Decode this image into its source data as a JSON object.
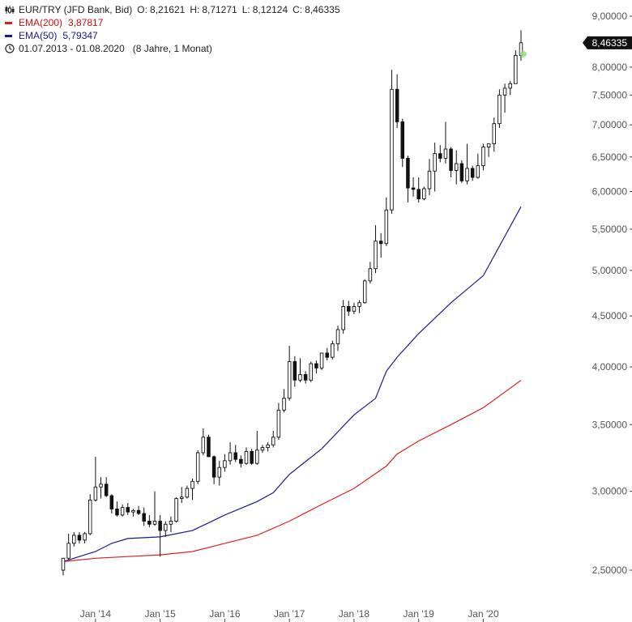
{
  "legend": {
    "instrument": "EUR/TRY (JFD Bank, Bid)",
    "open_label": "O:",
    "open": "8,21621",
    "high_label": "H:",
    "high": "8,71271",
    "low_label": "L:",
    "low": "8,12124",
    "close_label": "C:",
    "close": "8,46335",
    "ema200_label": "EMA(200)",
    "ema200_value": "3,87817",
    "ema50_label": "EMA(50)",
    "ema50_value": "5,79347",
    "range": "01.07.2013 - 01.08.2020",
    "range_note": "(8 Jahre, 1 Monat)",
    "icons": [
      "candlestick-icon",
      "clock-icon"
    ]
  },
  "colors": {
    "ema200": "#dd2222",
    "ema50": "#1a1a8c",
    "candle": "#111111",
    "last_price_bg": "#111111",
    "last_marker": "#8ee07a"
  },
  "chart_data": {
    "type": "candlestick",
    "title": "EUR/TRY (JFD Bank, Bid)",
    "y_scale": "log",
    "ylim": [
      2.4,
      9.15
    ],
    "y_ticks": [
      {
        "v": 2.5,
        "label": "2,50000"
      },
      {
        "v": 3.0,
        "label": "3,00000"
      },
      {
        "v": 3.5,
        "label": "3,50000"
      },
      {
        "v": 4.0,
        "label": "4,00000"
      },
      {
        "v": 4.5,
        "label": "4,50000"
      },
      {
        "v": 5.0,
        "label": "5,00000"
      },
      {
        "v": 5.5,
        "label": "5,50000"
      },
      {
        "v": 6.0,
        "label": "6,00000"
      },
      {
        "v": 6.5,
        "label": "6,50000"
      },
      {
        "v": 7.0,
        "label": "7,00000"
      },
      {
        "v": 7.5,
        "label": "7,50000"
      },
      {
        "v": 8.0,
        "label": "8,00000"
      },
      {
        "v": 9.0,
        "label": "9,00000"
      }
    ],
    "last_price": {
      "v": 8.46335,
      "label": "8,46335"
    },
    "x_ticks": [
      {
        "date": "2014-01",
        "label": "Jan '14"
      },
      {
        "date": "2015-01",
        "label": "Jan '15"
      },
      {
        "date": "2016-01",
        "label": "Jan '16"
      },
      {
        "date": "2017-01",
        "label": "Jan '17"
      },
      {
        "date": "2018-01",
        "label": "Jan '18"
      },
      {
        "date": "2019-01",
        "label": "Jan '19"
      },
      {
        "date": "2020-01",
        "label": "Jan '20"
      }
    ],
    "candles": [
      {
        "d": "2013-07",
        "o": 2.5,
        "h": 2.57,
        "l": 2.47,
        "c": 2.57
      },
      {
        "d": "2013-08",
        "o": 2.57,
        "h": 2.72,
        "l": 2.56,
        "c": 2.66
      },
      {
        "d": "2013-09",
        "o": 2.66,
        "h": 2.73,
        "l": 2.64,
        "c": 2.71
      },
      {
        "d": "2013-10",
        "o": 2.71,
        "h": 2.73,
        "l": 2.66,
        "c": 2.68
      },
      {
        "d": "2013-11",
        "o": 2.68,
        "h": 2.73,
        "l": 2.66,
        "c": 2.72
      },
      {
        "d": "2013-12",
        "o": 2.72,
        "h": 2.98,
        "l": 2.71,
        "c": 2.94
      },
      {
        "d": "2014-01",
        "o": 2.94,
        "h": 3.25,
        "l": 2.93,
        "c": 3.03
      },
      {
        "d": "2014-02",
        "o": 3.03,
        "h": 3.1,
        "l": 2.95,
        "c": 3.05
      },
      {
        "d": "2014-03",
        "o": 3.05,
        "h": 3.1,
        "l": 2.96,
        "c": 2.97
      },
      {
        "d": "2014-04",
        "o": 2.97,
        "h": 2.98,
        "l": 2.85,
        "c": 2.88
      },
      {
        "d": "2014-05",
        "o": 2.88,
        "h": 2.93,
        "l": 2.83,
        "c": 2.84
      },
      {
        "d": "2014-06",
        "o": 2.84,
        "h": 2.91,
        "l": 2.83,
        "c": 2.89
      },
      {
        "d": "2014-07",
        "o": 2.89,
        "h": 2.92,
        "l": 2.84,
        "c": 2.86
      },
      {
        "d": "2014-08",
        "o": 2.86,
        "h": 2.88,
        "l": 2.83,
        "c": 2.87
      },
      {
        "d": "2014-09",
        "o": 2.87,
        "h": 2.9,
        "l": 2.84,
        "c": 2.85
      },
      {
        "d": "2014-10",
        "o": 2.85,
        "h": 2.89,
        "l": 2.77,
        "c": 2.8
      },
      {
        "d": "2014-11",
        "o": 2.8,
        "h": 2.84,
        "l": 2.76,
        "c": 2.78
      },
      {
        "d": "2014-12",
        "o": 2.78,
        "h": 3.0,
        "l": 2.77,
        "c": 2.8
      },
      {
        "d": "2015-01",
        "o": 2.8,
        "h": 2.84,
        "l": 2.58,
        "c": 2.74
      },
      {
        "d": "2015-02",
        "o": 2.74,
        "h": 2.8,
        "l": 2.7,
        "c": 2.78
      },
      {
        "d": "2015-03",
        "o": 2.78,
        "h": 2.83,
        "l": 2.73,
        "c": 2.8
      },
      {
        "d": "2015-04",
        "o": 2.8,
        "h": 2.96,
        "l": 2.79,
        "c": 2.95
      },
      {
        "d": "2015-05",
        "o": 2.95,
        "h": 3.03,
        "l": 2.92,
        "c": 2.96
      },
      {
        "d": "2015-06",
        "o": 2.96,
        "h": 3.04,
        "l": 2.95,
        "c": 3.02
      },
      {
        "d": "2015-07",
        "o": 3.02,
        "h": 3.09,
        "l": 2.94,
        "c": 3.07
      },
      {
        "d": "2015-08",
        "o": 3.07,
        "h": 3.3,
        "l": 3.05,
        "c": 3.28
      },
      {
        "d": "2015-09",
        "o": 3.28,
        "h": 3.47,
        "l": 3.26,
        "c": 3.4
      },
      {
        "d": "2015-10",
        "o": 3.4,
        "h": 3.42,
        "l": 3.26,
        "c": 3.25
      },
      {
        "d": "2015-11",
        "o": 3.25,
        "h": 3.26,
        "l": 3.05,
        "c": 3.1
      },
      {
        "d": "2015-12",
        "o": 3.1,
        "h": 3.22,
        "l": 3.04,
        "c": 3.17
      },
      {
        "d": "2016-01",
        "o": 3.17,
        "h": 3.27,
        "l": 3.14,
        "c": 3.22
      },
      {
        "d": "2016-02",
        "o": 3.22,
        "h": 3.36,
        "l": 3.19,
        "c": 3.28
      },
      {
        "d": "2016-03",
        "o": 3.28,
        "h": 3.34,
        "l": 3.21,
        "c": 3.23
      },
      {
        "d": "2016-04",
        "o": 3.23,
        "h": 3.26,
        "l": 3.17,
        "c": 3.2
      },
      {
        "d": "2016-05",
        "o": 3.2,
        "h": 3.32,
        "l": 3.19,
        "c": 3.29
      },
      {
        "d": "2016-06",
        "o": 3.29,
        "h": 3.31,
        "l": 3.19,
        "c": 3.2
      },
      {
        "d": "2016-07",
        "o": 3.2,
        "h": 3.45,
        "l": 3.19,
        "c": 3.3
      },
      {
        "d": "2016-08",
        "o": 3.3,
        "h": 3.34,
        "l": 3.28,
        "c": 3.32
      },
      {
        "d": "2016-09",
        "o": 3.32,
        "h": 3.36,
        "l": 3.29,
        "c": 3.34
      },
      {
        "d": "2016-10",
        "o": 3.34,
        "h": 3.45,
        "l": 3.32,
        "c": 3.4
      },
      {
        "d": "2016-11",
        "o": 3.4,
        "h": 3.68,
        "l": 3.38,
        "c": 3.62
      },
      {
        "d": "2016-12",
        "o": 3.62,
        "h": 3.8,
        "l": 3.6,
        "c": 3.72
      },
      {
        "d": "2017-01",
        "o": 3.72,
        "h": 4.2,
        "l": 3.7,
        "c": 4.05
      },
      {
        "d": "2017-02",
        "o": 4.05,
        "h": 4.1,
        "l": 3.82,
        "c": 3.88
      },
      {
        "d": "2017-03",
        "o": 3.88,
        "h": 4.08,
        "l": 3.86,
        "c": 3.93
      },
      {
        "d": "2017-04",
        "o": 3.93,
        "h": 3.96,
        "l": 3.85,
        "c": 3.88
      },
      {
        "d": "2017-05",
        "o": 3.88,
        "h": 4.05,
        "l": 3.86,
        "c": 4.03
      },
      {
        "d": "2017-06",
        "o": 4.03,
        "h": 4.06,
        "l": 3.94,
        "c": 3.99
      },
      {
        "d": "2017-07",
        "o": 3.99,
        "h": 4.13,
        "l": 3.97,
        "c": 4.13
      },
      {
        "d": "2017-08",
        "o": 4.13,
        "h": 4.18,
        "l": 4.06,
        "c": 4.09
      },
      {
        "d": "2017-09",
        "o": 4.09,
        "h": 4.25,
        "l": 4.07,
        "c": 4.22
      },
      {
        "d": "2017-10",
        "o": 4.22,
        "h": 4.4,
        "l": 4.15,
        "c": 4.36
      },
      {
        "d": "2017-11",
        "o": 4.36,
        "h": 4.67,
        "l": 4.32,
        "c": 4.6
      },
      {
        "d": "2017-12",
        "o": 4.6,
        "h": 4.66,
        "l": 4.5,
        "c": 4.55
      },
      {
        "d": "2018-01",
        "o": 4.55,
        "h": 4.64,
        "l": 4.52,
        "c": 4.6
      },
      {
        "d": "2018-02",
        "o": 4.6,
        "h": 4.67,
        "l": 4.53,
        "c": 4.64
      },
      {
        "d": "2018-03",
        "o": 4.64,
        "h": 4.9,
        "l": 4.63,
        "c": 4.88
      },
      {
        "d": "2018-04",
        "o": 4.88,
        "h": 5.1,
        "l": 4.85,
        "c": 5.02
      },
      {
        "d": "2018-05",
        "o": 5.02,
        "h": 5.55,
        "l": 4.97,
        "c": 5.35
      },
      {
        "d": "2018-06",
        "o": 5.35,
        "h": 5.45,
        "l": 5.15,
        "c": 5.32
      },
      {
        "d": "2018-07",
        "o": 5.32,
        "h": 5.92,
        "l": 5.29,
        "c": 5.75
      },
      {
        "d": "2018-08",
        "o": 5.75,
        "h": 7.95,
        "l": 5.7,
        "c": 7.6
      },
      {
        "d": "2018-09",
        "o": 7.6,
        "h": 7.87,
        "l": 6.95,
        "c": 7.05
      },
      {
        "d": "2018-10",
        "o": 7.05,
        "h": 7.1,
        "l": 6.35,
        "c": 6.48
      },
      {
        "d": "2018-11",
        "o": 6.48,
        "h": 6.52,
        "l": 5.85,
        "c": 6.05
      },
      {
        "d": "2018-12",
        "o": 6.05,
        "h": 6.2,
        "l": 5.93,
        "c": 6.03
      },
      {
        "d": "2019-01",
        "o": 6.03,
        "h": 6.2,
        "l": 5.85,
        "c": 5.9
      },
      {
        "d": "2019-02",
        "o": 5.9,
        "h": 6.07,
        "l": 5.88,
        "c": 6.04
      },
      {
        "d": "2019-03",
        "o": 6.04,
        "h": 6.47,
        "l": 5.95,
        "c": 6.29
      },
      {
        "d": "2019-04",
        "o": 6.29,
        "h": 6.72,
        "l": 6.0,
        "c": 6.55
      },
      {
        "d": "2019-05",
        "o": 6.55,
        "h": 6.68,
        "l": 6.42,
        "c": 6.48
      },
      {
        "d": "2019-06",
        "o": 6.48,
        "h": 7.05,
        "l": 6.4,
        "c": 6.62
      },
      {
        "d": "2019-07",
        "o": 6.62,
        "h": 6.65,
        "l": 6.2,
        "c": 6.3
      },
      {
        "d": "2019-08",
        "o": 6.3,
        "h": 6.6,
        "l": 6.1,
        "c": 6.4
      },
      {
        "d": "2019-09",
        "o": 6.4,
        "h": 6.45,
        "l": 6.12,
        "c": 6.15
      },
      {
        "d": "2019-10",
        "o": 6.15,
        "h": 6.7,
        "l": 6.1,
        "c": 6.33
      },
      {
        "d": "2019-11",
        "o": 6.33,
        "h": 6.37,
        "l": 6.15,
        "c": 6.2
      },
      {
        "d": "2019-12",
        "o": 6.2,
        "h": 6.55,
        "l": 6.18,
        "c": 6.37
      },
      {
        "d": "2020-01",
        "o": 6.37,
        "h": 6.7,
        "l": 6.3,
        "c": 6.65
      },
      {
        "d": "2020-02",
        "o": 6.65,
        "h": 6.7,
        "l": 6.5,
        "c": 6.7
      },
      {
        "d": "2020-03",
        "o": 6.7,
        "h": 7.12,
        "l": 6.58,
        "c": 7.02
      },
      {
        "d": "2020-04",
        "o": 7.02,
        "h": 7.6,
        "l": 6.95,
        "c": 7.5
      },
      {
        "d": "2020-05",
        "o": 7.5,
        "h": 7.7,
        "l": 7.2,
        "c": 7.62
      },
      {
        "d": "2020-06",
        "o": 7.62,
        "h": 7.75,
        "l": 7.5,
        "c": 7.7
      },
      {
        "d": "2020-07",
        "o": 7.7,
        "h": 8.32,
        "l": 7.7,
        "c": 8.22
      },
      {
        "d": "2020-08",
        "o": 8.21621,
        "h": 8.71271,
        "l": 8.12124,
        "c": 8.46335
      }
    ],
    "series": [
      {
        "name": "EMA(200)",
        "color": "#dd2222",
        "x": [
          "2013-07",
          "2014-01",
          "2014-07",
          "2015-01",
          "2015-07",
          "2016-01",
          "2016-07",
          "2017-01",
          "2017-07",
          "2018-01",
          "2018-07",
          "2018-09",
          "2019-01",
          "2019-07",
          "2020-01",
          "2020-08"
        ],
        "y": [
          2.55,
          2.57,
          2.58,
          2.59,
          2.61,
          2.66,
          2.71,
          2.8,
          2.91,
          3.02,
          3.18,
          3.27,
          3.37,
          3.5,
          3.64,
          3.878
        ]
      },
      {
        "name": "EMA(50)",
        "color": "#1a1a8c",
        "x": [
          "2013-07",
          "2014-01",
          "2014-04",
          "2014-07",
          "2015-01",
          "2015-07",
          "2016-01",
          "2016-07",
          "2016-10",
          "2017-01",
          "2017-07",
          "2018-01",
          "2018-05",
          "2018-07",
          "2018-09",
          "2019-01",
          "2019-07",
          "2020-01",
          "2020-08"
        ],
        "y": [
          2.55,
          2.61,
          2.66,
          2.69,
          2.7,
          2.74,
          2.84,
          2.93,
          2.99,
          3.12,
          3.31,
          3.58,
          3.72,
          3.96,
          4.09,
          4.32,
          4.64,
          4.94,
          5.793
        ]
      }
    ]
  }
}
